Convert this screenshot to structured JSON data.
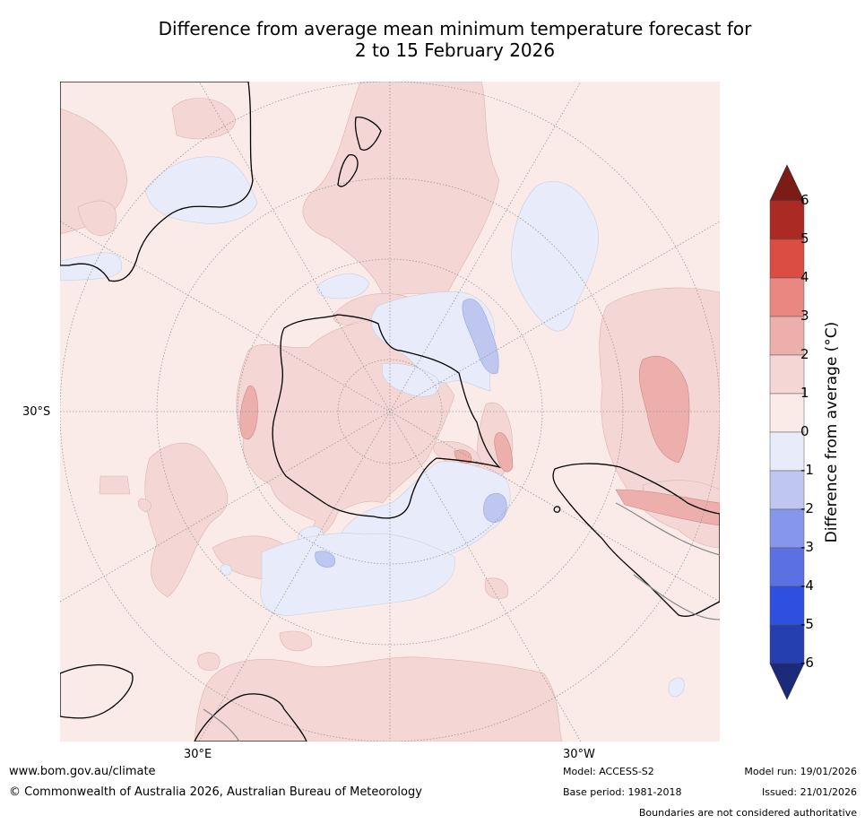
{
  "title": {
    "line1": "Difference from average mean minimum temperature forecast for",
    "line2": "2 to 15 February 2026"
  },
  "map": {
    "projection": "south-polar-stereographic",
    "lat_label_30s": "30°S",
    "lon_label_30e": "30°E",
    "lon_label_30w": "30°W",
    "colors": {
      "anom_0_1": "#fbebe8",
      "anom_1_2": "#f4d6d4",
      "anom_2_3": "#ecafab",
      "anom_3_4": "#e98781",
      "anom_m1_0": "#e8ecfa",
      "anom_m2_m1": "#bfc7f1",
      "coast": "#000000",
      "border": "#888888",
      "grid": "#999999"
    }
  },
  "colorbar": {
    "label": "Difference from average (°C)",
    "ticks": [
      "6",
      "5",
      "4",
      "3",
      "2",
      "1",
      "0",
      "-1",
      "-2",
      "-3",
      "-4",
      "-5",
      "-6"
    ],
    "levels": [
      {
        "range": "above 6",
        "color": "#7b1c17"
      },
      {
        "range": "5 to 6",
        "color": "#ab2a24"
      },
      {
        "range": "4 to 5",
        "color": "#db4d42"
      },
      {
        "range": "3 to 4",
        "color": "#e98781"
      },
      {
        "range": "2 to 3",
        "color": "#ecafab"
      },
      {
        "range": "1 to 2",
        "color": "#f4d6d4"
      },
      {
        "range": "0 to 1",
        "color": "#fbebe8"
      },
      {
        "range": "-1 to 0",
        "color": "#e8ecfa"
      },
      {
        "range": "-2 to -1",
        "color": "#bfc7f1"
      },
      {
        "range": "-3 to -2",
        "color": "#8596ec"
      },
      {
        "range": "-4 to -3",
        "color": "#5b70e3"
      },
      {
        "range": "-5 to -4",
        "color": "#2f4fe0"
      },
      {
        "range": "-6 to -5",
        "color": "#263fb0"
      },
      {
        "range": "below -6",
        "color": "#1c2a7c"
      }
    ]
  },
  "footer": {
    "website": "www.bom.gov.au/climate",
    "copyright": "© Commonwealth of Australia 2026, Australian Bureau of Meteorology",
    "model": "Model: ACCESS-S2",
    "base_period": "Base period: 1981-2018",
    "model_run": "Model run: 19/01/2026",
    "issued": "Issued: 21/01/2026",
    "disclaimer": "Boundaries are not considered authoritative"
  }
}
